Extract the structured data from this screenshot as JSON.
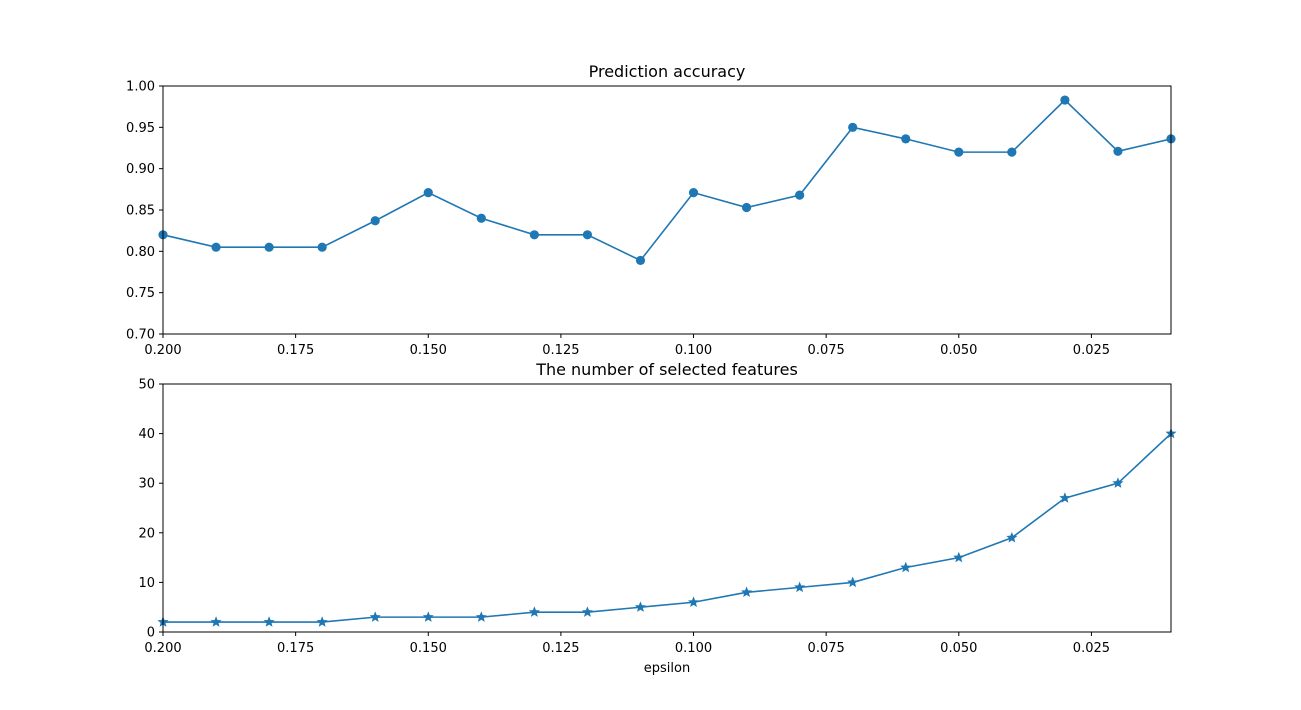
{
  "chart_data": [
    {
      "type": "line",
      "title": "Prediction accuracy",
      "xlabel": "",
      "ylabel": "",
      "marker": "circle",
      "color": "#1f77b4",
      "xlim": [
        0.2,
        0.01
      ],
      "ylim": [
        0.7,
        1.0
      ],
      "xticks": [
        0.2,
        0.175,
        0.15,
        0.125,
        0.1,
        0.075,
        0.05,
        0.025
      ],
      "xtick_labels": [
        "0.200",
        "0.175",
        "0.150",
        "0.125",
        "0.100",
        "0.075",
        "0.050",
        "0.025"
      ],
      "yticks": [
        0.7,
        0.75,
        0.8,
        0.85,
        0.9,
        0.95,
        1.0
      ],
      "ytick_labels": [
        "0.70",
        "0.75",
        "0.80",
        "0.85",
        "0.90",
        "0.95",
        "1.00"
      ],
      "x": [
        0.2,
        0.19,
        0.18,
        0.17,
        0.16,
        0.15,
        0.14,
        0.13,
        0.12,
        0.11,
        0.1,
        0.09,
        0.08,
        0.07,
        0.06,
        0.05,
        0.04,
        0.03,
        0.02,
        0.01
      ],
      "y": [
        0.82,
        0.805,
        0.805,
        0.805,
        0.837,
        0.871,
        0.84,
        0.82,
        0.82,
        0.789,
        0.871,
        0.853,
        0.868,
        0.95,
        0.936,
        0.92,
        0.92,
        0.983,
        0.921,
        0.936
      ],
      "grid": false
    },
    {
      "type": "line",
      "title": "The number of selected features",
      "xlabel": "epsilon",
      "ylabel": "",
      "marker": "star",
      "color": "#1f77b4",
      "xlim": [
        0.2,
        0.01
      ],
      "ylim": [
        0,
        50
      ],
      "xticks": [
        0.2,
        0.175,
        0.15,
        0.125,
        0.1,
        0.075,
        0.05,
        0.025
      ],
      "xtick_labels": [
        "0.200",
        "0.175",
        "0.150",
        "0.125",
        "0.100",
        "0.075",
        "0.050",
        "0.025"
      ],
      "yticks": [
        0,
        10,
        20,
        30,
        40,
        50
      ],
      "ytick_labels": [
        "0",
        "10",
        "20",
        "30",
        "40",
        "50"
      ],
      "x": [
        0.2,
        0.19,
        0.18,
        0.17,
        0.16,
        0.15,
        0.14,
        0.13,
        0.12,
        0.11,
        0.1,
        0.09,
        0.08,
        0.07,
        0.06,
        0.05,
        0.04,
        0.03,
        0.02,
        0.01
      ],
      "y": [
        2,
        2,
        2,
        2,
        3,
        3,
        3,
        4,
        4,
        5,
        6,
        8,
        9,
        10,
        13,
        15,
        19,
        27,
        30,
        40
      ],
      "grid": false
    }
  ]
}
